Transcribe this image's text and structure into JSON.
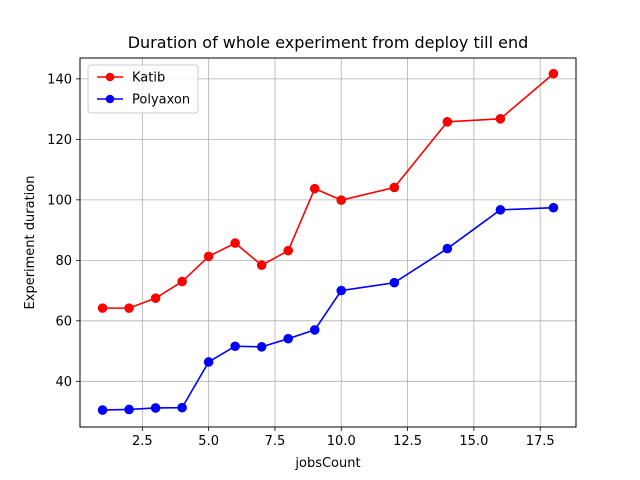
{
  "chart_data": {
    "type": "line",
    "title": "Duration of whole experiment from deploy till end",
    "xlabel": "jobsCount",
    "ylabel": "Experiment duration",
    "xlim": [
      0.15,
      18.85
    ],
    "ylim": [
      24.9,
      146.9
    ],
    "xticks": [
      2.5,
      5.0,
      7.5,
      10.0,
      12.5,
      15.0,
      17.5
    ],
    "xtick_labels": [
      "2.5",
      "5.0",
      "7.5",
      "10.0",
      "12.5",
      "15.0",
      "17.5"
    ],
    "yticks": [
      40,
      60,
      80,
      100,
      120,
      140
    ],
    "ytick_labels": [
      "40",
      "60",
      "80",
      "100",
      "120",
      "140"
    ],
    "grid": true,
    "legend_position": "top-left",
    "x": [
      1,
      2,
      3,
      4,
      5,
      6,
      7,
      8,
      9,
      10,
      12,
      14,
      16,
      18
    ],
    "series": [
      {
        "name": "Katib",
        "color": "#ff0000",
        "values": [
          64.2,
          64.2,
          67.5,
          73.0,
          81.3,
          85.7,
          78.4,
          83.2,
          103.7,
          99.9,
          104.1,
          125.8,
          126.8,
          141.7
        ]
      },
      {
        "name": "Polyaxon",
        "color": "#0000ff",
        "values": [
          30.5,
          30.7,
          31.2,
          31.3,
          46.4,
          51.6,
          51.4,
          54.1,
          57.0,
          70.0,
          72.6,
          83.9,
          96.7,
          97.4
        ]
      }
    ]
  }
}
